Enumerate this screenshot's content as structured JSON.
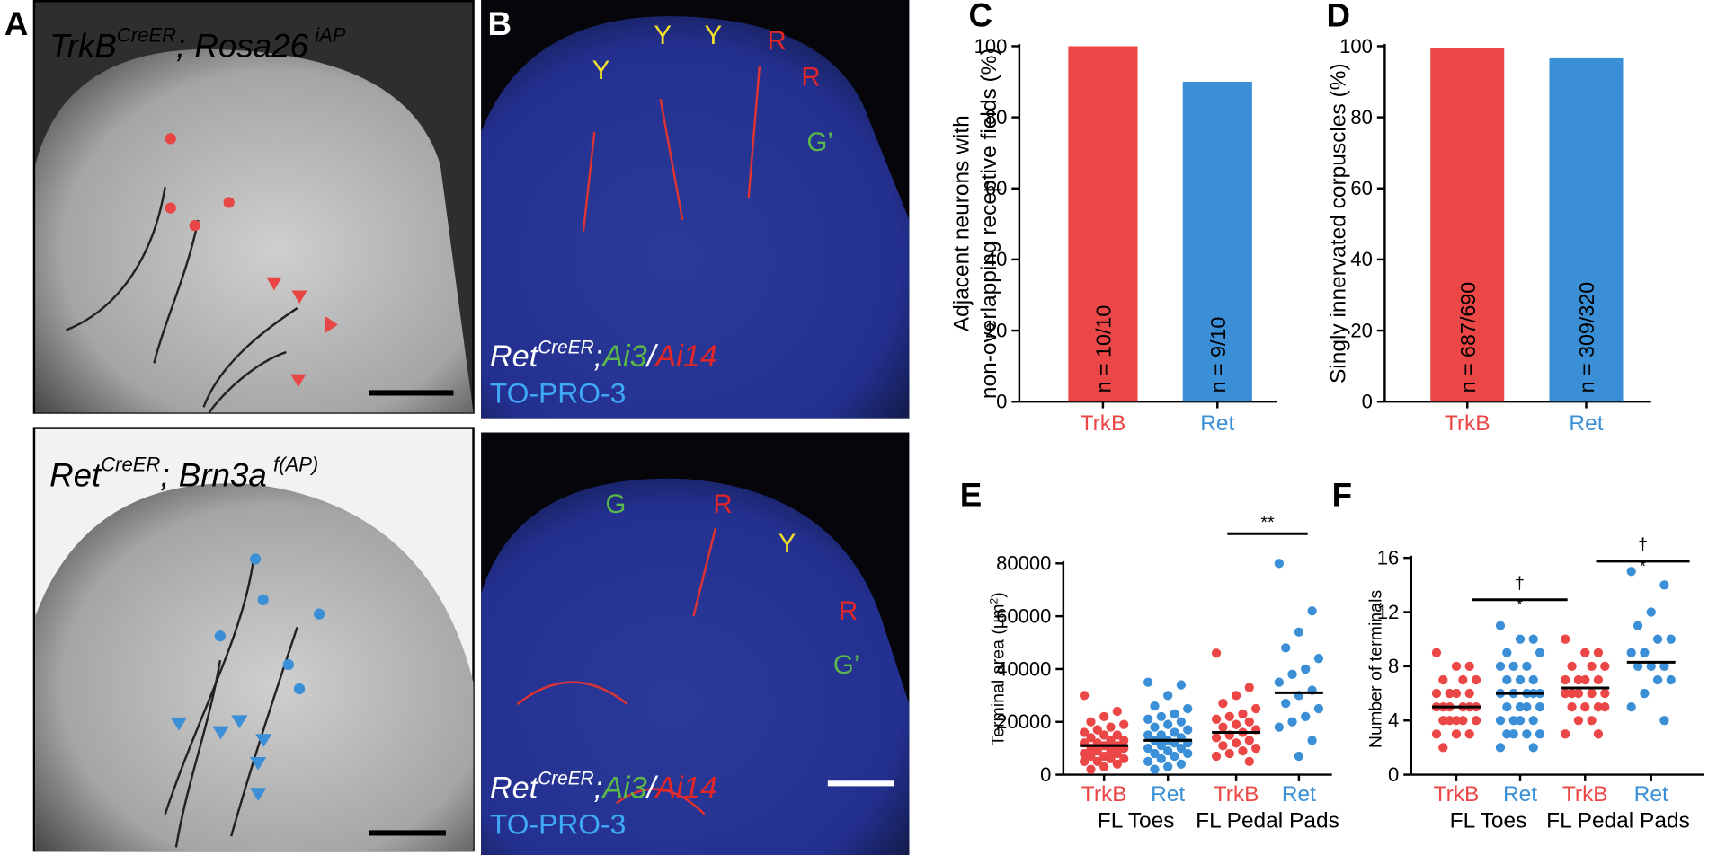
{
  "panels": {
    "a": {
      "label": "A",
      "top": [
        "TrkB",
        "CreER",
        "; Rosa26",
        "iAP"
      ],
      "bottom": [
        "Ret",
        "CreER",
        "; Brn3a",
        "f(AP)"
      ]
    },
    "b": {
      "label": "B",
      "top_marks": [
        "Y",
        "Y",
        "Y",
        "R",
        "R",
        "G’"
      ],
      "bottom_marks": [
        "G",
        "R",
        "Y",
        "R",
        "G’"
      ],
      "caption": [
        "Ret",
        "CreER",
        ";",
        "Ai3",
        "/",
        "Ai14"
      ],
      "stain": "TO-PRO-3",
      "caption2": [
        "Ret",
        "CreER",
        ";",
        "Ai3",
        "/",
        "Ai14"
      ],
      "stain2": "TO-PRO-3"
    }
  },
  "chart_data": [
    {
      "type": "bar",
      "panel": "C",
      "ylabel": [
        "Adjacent neurons with",
        "non-overlapping receptive fields (%)"
      ],
      "categories": [
        "TrkB",
        "Ret"
      ],
      "values": [
        100,
        90
      ],
      "bar_labels": [
        "n = 10/10",
        "n = 9/10"
      ],
      "colors": [
        "#ec4747",
        "#3a8fd6"
      ],
      "ylim": [
        0,
        100
      ],
      "yticks": [
        0,
        20,
        40,
        60,
        80,
        100
      ]
    },
    {
      "type": "bar",
      "panel": "D",
      "ylabel": [
        "Singly innervated corpuscles (%)"
      ],
      "categories": [
        "TrkB",
        "Ret"
      ],
      "values": [
        99.6,
        96.6
      ],
      "bar_labels": [
        "n = 687/690",
        "n = 309/320"
      ],
      "colors": [
        "#ec4747",
        "#3a8fd6"
      ],
      "ylim": [
        0,
        100
      ],
      "yticks": [
        0,
        20,
        40,
        60,
        80,
        100
      ]
    },
    {
      "type": "scatter",
      "panel": "E",
      "ylabel": [
        "Terminal area (µm",
        "2",
        ")"
      ],
      "categories": [
        "TrkB",
        "Ret",
        "TrkB",
        "Ret"
      ],
      "groups": [
        "FL Toes",
        "FL Pedal Pads"
      ],
      "annotations": [
        "**"
      ],
      "ylim": [
        0,
        80000
      ],
      "yticks": [
        0,
        20000,
        40000,
        60000,
        80000
      ],
      "series": [
        {
          "color": "#ec4747",
          "mean": 11000,
          "values": [
            30000,
            24000,
            22000,
            20000,
            19000,
            18000,
            17000,
            16000,
            15000,
            15000,
            14000,
            13000,
            13000,
            12000,
            12000,
            11000,
            11000,
            10000,
            10000,
            9000,
            9000,
            8000,
            8000,
            7000,
            7000,
            6000,
            6000,
            5000,
            5000,
            4000,
            3000,
            2000
          ]
        },
        {
          "color": "#3a8fd6",
          "mean": 13000,
          "values": [
            35000,
            34000,
            30000,
            26000,
            25000,
            23000,
            22000,
            21000,
            20000,
            19000,
            18000,
            17000,
            16000,
            15000,
            15000,
            14000,
            13000,
            13000,
            12000,
            12000,
            11000,
            10000,
            10000,
            9000,
            8000,
            8000,
            7000,
            6000,
            5000,
            4000,
            3000,
            2000
          ]
        },
        {
          "color": "#ec4747",
          "mean": 16000,
          "values": [
            46000,
            33000,
            30000,
            27000,
            25000,
            23000,
            22000,
            21000,
            20000,
            19000,
            18000,
            17000,
            16000,
            15000,
            14000,
            13000,
            12000,
            11000,
            10000,
            9000,
            8000,
            7000,
            5000
          ]
        },
        {
          "color": "#3a8fd6",
          "mean": 31000,
          "values": [
            80000,
            62000,
            54000,
            48000,
            44000,
            40000,
            38000,
            35000,
            32000,
            30000,
            27000,
            25000,
            22000,
            20000,
            18000,
            13000,
            7000
          ]
        }
      ]
    },
    {
      "type": "scatter",
      "panel": "F",
      "ylabel": [
        "Number of terminals"
      ],
      "categories": [
        "TrkB",
        "Ret",
        "TrkB",
        "Ret"
      ],
      "groups": [
        "FL Toes",
        "FL Pedal Pads"
      ],
      "annotations": [
        "†",
        "*",
        "†",
        "*"
      ],
      "ylim": [
        0,
        16
      ],
      "yticks": [
        0,
        4,
        8,
        12,
        16
      ],
      "series": [
        {
          "color": "#ec4747",
          "mean": 5,
          "values": [
            9,
            8,
            8,
            7,
            7,
            7,
            6,
            6,
            6,
            6,
            5,
            5,
            5,
            5,
            5,
            5,
            4,
            4,
            4,
            4,
            4,
            3,
            3,
            3,
            2
          ]
        },
        {
          "color": "#3a8fd6",
          "mean": 6,
          "values": [
            11,
            10,
            10,
            9,
            9,
            8,
            8,
            8,
            7,
            7,
            7,
            6,
            6,
            6,
            6,
            6,
            5,
            5,
            5,
            5,
            4,
            4,
            4,
            4,
            3,
            3,
            3,
            3,
            2,
            2
          ]
        },
        {
          "color": "#ec4747",
          "mean": 6.4,
          "values": [
            10,
            9,
            9,
            8,
            8,
            8,
            7,
            7,
            7,
            7,
            6,
            6,
            6,
            6,
            6,
            5,
            5,
            5,
            5,
            4,
            4,
            3,
            3
          ]
        },
        {
          "color": "#3a8fd6",
          "mean": 8.3,
          "values": [
            15,
            14,
            12,
            11,
            10,
            10,
            9,
            9,
            8,
            8,
            8,
            7,
            7,
            6,
            5,
            4
          ]
        }
      ]
    }
  ]
}
